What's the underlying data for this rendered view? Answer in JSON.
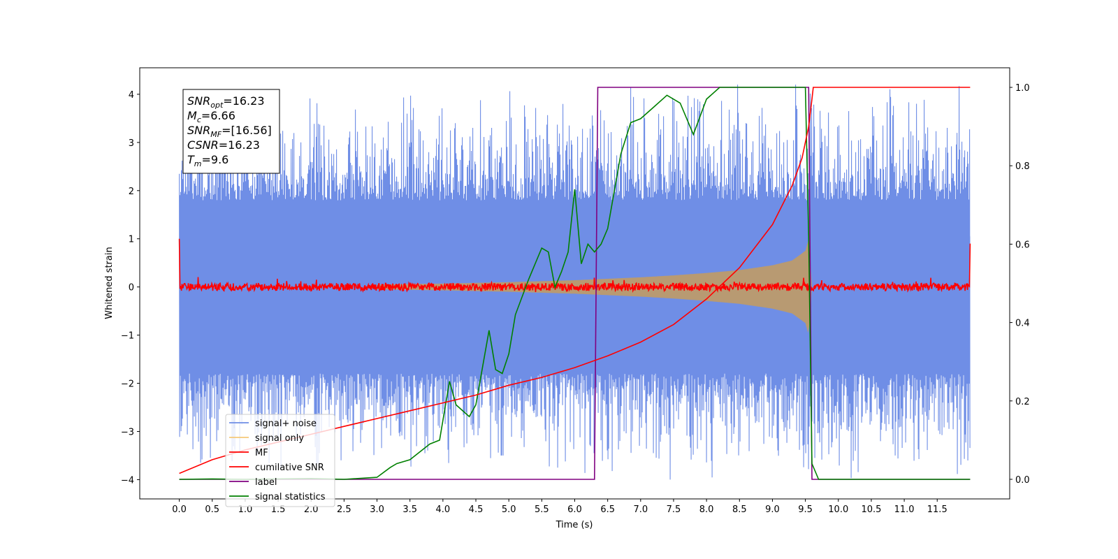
{
  "chart_data": {
    "type": "line",
    "xlabel": "Time (s)",
    "ylabel": "Whitened strain",
    "xlim": [
      -0.6,
      12.6
    ],
    "ylim_left": [
      -4.4,
      4.55
    ],
    "ylim_right": [
      -0.05,
      1.05
    ],
    "x_ticks": [
      0.0,
      0.5,
      1.0,
      1.5,
      2.0,
      2.5,
      3.0,
      3.5,
      4.0,
      4.5,
      5.0,
      5.5,
      6.0,
      6.5,
      7.0,
      7.5,
      8.0,
      8.5,
      9.0,
      9.5,
      10.0,
      10.5,
      11.0,
      11.5
    ],
    "x_tick_labels": [
      "0.0",
      "0.5",
      "1.0",
      "1.5",
      "2.0",
      "2.5",
      "3.0",
      "3.5",
      "4.0",
      "4.5",
      "5.0",
      "5.5",
      "6.0",
      "6.5",
      "7.0",
      "7.5",
      "8.0",
      "8.5",
      "9.0",
      "9.5",
      "10.0",
      "10.5",
      "11.0",
      "11.5"
    ],
    "y_left_ticks": [
      -4,
      -3,
      -2,
      -1,
      0,
      1,
      2,
      3,
      4
    ],
    "y_left_tick_labels": [
      "−4",
      "−3",
      "−2",
      "−1",
      "0",
      "1",
      "2",
      "3",
      "4"
    ],
    "y_right_ticks": [
      0.0,
      0.2,
      0.4,
      0.6,
      0.8,
      1.0
    ],
    "y_right_tick_labels": [
      "0.0",
      "0.2",
      "0.4",
      "0.6",
      "0.8",
      "1.0"
    ],
    "legend_position": "lower-left",
    "legend": [
      {
        "label": "signal+ noise",
        "color": "#6f8ee6"
      },
      {
        "label": "signal only",
        "color": "#f5c97a"
      },
      {
        "label": "MF",
        "color": "#ff0000"
      },
      {
        "label": "cumilative SNR",
        "color": "#ff0000"
      },
      {
        "label": "label",
        "color": "#800080"
      },
      {
        "label": "signal statistics",
        "color": "#008000"
      }
    ],
    "annotation": {
      "lines": [
        {
          "base": "SNR",
          "sub": "opt",
          "rest": "=16.23"
        },
        {
          "base": "M",
          "sub": "c",
          "rest": "=6.66"
        },
        {
          "base": "SNR",
          "sub": "MF",
          "rest": "=[16.56]"
        },
        {
          "base": "CSNR",
          "sub": "",
          "rest": "=16.23"
        },
        {
          "base": "T",
          "sub": "m",
          "rest": "=9.6"
        }
      ]
    },
    "series": [
      {
        "name": "signal+ noise",
        "axis": "left",
        "style": "noise_band",
        "color": "#6f8ee6",
        "x_range": [
          0.0,
          12.0
        ],
        "typical_upper": 1.8,
        "typical_lower": -1.8,
        "peak_extent": [
          -4.0,
          4.2
        ]
      },
      {
        "name": "signal only",
        "axis": "left",
        "style": "chirp_envelope",
        "color": "#b89a72",
        "x": [
          3.0,
          4.0,
          5.0,
          6.0,
          6.5,
          7.0,
          7.5,
          8.0,
          8.5,
          9.0,
          9.3,
          9.5,
          9.55,
          9.6
        ],
        "amplitude": [
          0.05,
          0.07,
          0.1,
          0.14,
          0.17,
          0.2,
          0.24,
          0.29,
          0.35,
          0.45,
          0.55,
          0.75,
          1.0,
          0.0
        ]
      },
      {
        "name": "MF",
        "axis": "left",
        "style": "noise_line",
        "color": "#ff0000",
        "x_range": [
          0.0,
          12.0
        ],
        "baseline": 0.0,
        "jitter": 0.08,
        "start_value": 1.0,
        "end_value": 0.9
      },
      {
        "name": "cumilative SNR",
        "axis": "right",
        "color": "#ff0000",
        "x": [
          0.0,
          0.5,
          1.0,
          1.5,
          2.0,
          2.5,
          3.0,
          3.5,
          4.0,
          4.5,
          5.0,
          5.5,
          6.0,
          6.5,
          7.0,
          7.5,
          8.0,
          8.5,
          9.0,
          9.3,
          9.45,
          9.55,
          9.6,
          9.62,
          12.0
        ],
        "y": [
          0.015,
          0.05,
          0.075,
          0.095,
          0.115,
          0.135,
          0.155,
          0.175,
          0.195,
          0.215,
          0.24,
          0.26,
          0.285,
          0.315,
          0.35,
          0.395,
          0.46,
          0.54,
          0.65,
          0.75,
          0.82,
          0.9,
          0.97,
          1.0,
          1.0
        ]
      },
      {
        "name": "label",
        "axis": "right",
        "color": "#800080",
        "x": [
          0.0,
          6.3,
          6.35,
          9.55,
          9.6,
          12.0
        ],
        "y": [
          0.0,
          0.0,
          1.0,
          1.0,
          0.0,
          0.0
        ]
      },
      {
        "name": "signal statistics",
        "axis": "right",
        "color": "#008000",
        "x": [
          0.0,
          0.5,
          1.0,
          1.5,
          2.0,
          2.5,
          3.0,
          3.2,
          3.3,
          3.5,
          3.8,
          3.95,
          4.1,
          4.2,
          4.4,
          4.5,
          4.7,
          4.8,
          4.9,
          5.0,
          5.1,
          5.3,
          5.5,
          5.6,
          5.7,
          5.8,
          5.9,
          6.0,
          6.1,
          6.2,
          6.3,
          6.4,
          6.5,
          6.7,
          6.85,
          7.0,
          7.2,
          7.4,
          7.6,
          7.8,
          8.0,
          8.2,
          8.5,
          9.0,
          9.4,
          9.5,
          9.55,
          9.6,
          9.7,
          12.0
        ],
        "y": [
          0.0,
          0.001,
          0.0,
          0.001,
          0.002,
          0.0,
          0.005,
          0.03,
          0.04,
          0.05,
          0.09,
          0.1,
          0.25,
          0.19,
          0.16,
          0.19,
          0.38,
          0.28,
          0.27,
          0.32,
          0.42,
          0.51,
          0.59,
          0.58,
          0.49,
          0.53,
          0.58,
          0.74,
          0.55,
          0.6,
          0.58,
          0.6,
          0.64,
          0.83,
          0.91,
          0.92,
          0.95,
          0.98,
          0.96,
          0.88,
          0.97,
          1.0,
          1.0,
          1.0,
          1.0,
          1.0,
          0.62,
          0.04,
          0.0,
          0.0
        ]
      }
    ]
  }
}
